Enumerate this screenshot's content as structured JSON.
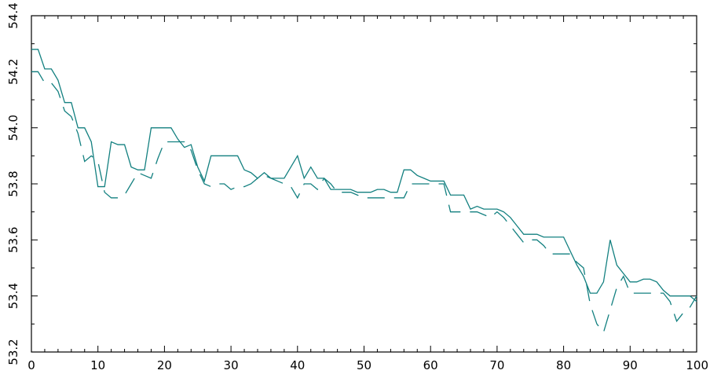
{
  "chart_data": {
    "type": "line",
    "title": "",
    "xlabel": "",
    "ylabel": "",
    "xlim": [
      0,
      100
    ],
    "ylim": [
      53.2,
      54.4
    ],
    "xticks": [
      0,
      10,
      20,
      30,
      40,
      50,
      60,
      70,
      80,
      90,
      100
    ],
    "xtick_labels": [
      "0",
      "10",
      "20",
      "30",
      "40",
      "50",
      "60",
      "70",
      "80",
      "90",
      "100"
    ],
    "yticks": [
      53.2,
      53.4,
      53.6,
      53.8,
      54.0,
      54.2,
      54.4
    ],
    "ytick_labels": [
      "53.2",
      "53.4",
      "53.6",
      "53.8",
      "54.0",
      "54.2",
      "54.4"
    ],
    "grid": false,
    "legend": "none",
    "colors": {
      "series": "#138080",
      "axes": "#000000",
      "background": "#ffffff"
    },
    "series": [
      {
        "style": "solid",
        "x": [
          0,
          1,
          2,
          3,
          4,
          5,
          6,
          7,
          8,
          9,
          10,
          11,
          12,
          13,
          14,
          15,
          16,
          17,
          18,
          19,
          20,
          21,
          22,
          23,
          24,
          25,
          26,
          27,
          28,
          29,
          30,
          31,
          32,
          33,
          34,
          35,
          36,
          37,
          38,
          39,
          40,
          41,
          42,
          43,
          44,
          45,
          46,
          47,
          48,
          49,
          50,
          51,
          52,
          53,
          54,
          55,
          56,
          57,
          58,
          59,
          60,
          61,
          62,
          63,
          64,
          65,
          66,
          67,
          68,
          69,
          70,
          71,
          72,
          73,
          74,
          75,
          76,
          77,
          78,
          79,
          80,
          81,
          82,
          83,
          84,
          85,
          86,
          87,
          88,
          89,
          90,
          91,
          92,
          93,
          94,
          95,
          96,
          97,
          98,
          99,
          100
        ],
        "y": [
          54.28,
          54.28,
          54.21,
          54.21,
          54.17,
          54.09,
          54.09,
          54.0,
          54.0,
          53.95,
          53.79,
          53.79,
          53.95,
          53.94,
          53.94,
          53.86,
          53.85,
          53.85,
          54.0,
          54.0,
          54.0,
          54.0,
          53.96,
          53.93,
          53.94,
          53.86,
          53.81,
          53.9,
          53.9,
          53.9,
          53.9,
          53.9,
          53.85,
          53.84,
          53.82,
          53.84,
          53.82,
          53.82,
          53.82,
          53.86,
          53.9,
          53.82,
          53.86,
          53.82,
          53.82,
          53.78,
          53.78,
          53.78,
          53.78,
          53.77,
          53.77,
          53.77,
          53.78,
          53.78,
          53.77,
          53.77,
          53.85,
          53.85,
          53.83,
          53.82,
          53.81,
          53.81,
          53.81,
          53.76,
          53.76,
          53.76,
          53.71,
          53.72,
          53.71,
          53.71,
          53.71,
          53.7,
          53.68,
          53.65,
          53.62,
          53.62,
          53.62,
          53.61,
          53.61,
          53.61,
          53.61,
          53.56,
          53.51,
          53.47,
          53.41,
          53.41,
          53.45,
          53.6,
          53.51,
          53.48,
          53.45,
          53.45,
          53.46,
          53.46,
          53.45,
          53.42,
          53.4,
          53.4,
          53.4,
          53.4,
          53.38
        ]
      },
      {
        "style": "dashed",
        "x": [
          0,
          1,
          2,
          3,
          4,
          5,
          6,
          7,
          8,
          9,
          10,
          11,
          12,
          13,
          14,
          15,
          16,
          17,
          18,
          19,
          20,
          21,
          22,
          23,
          24,
          25,
          26,
          27,
          28,
          29,
          30,
          31,
          32,
          33,
          34,
          35,
          36,
          37,
          38,
          39,
          40,
          41,
          42,
          43,
          44,
          45,
          46,
          47,
          48,
          49,
          50,
          51,
          52,
          53,
          54,
          55,
          56,
          57,
          58,
          59,
          60,
          61,
          62,
          63,
          64,
          65,
          66,
          67,
          68,
          69,
          70,
          71,
          72,
          73,
          74,
          75,
          76,
          77,
          78,
          79,
          80,
          81,
          82,
          83,
          84,
          85,
          86,
          87,
          88,
          89,
          90,
          91,
          92,
          93,
          94,
          95,
          96,
          97,
          98,
          99,
          100
        ],
        "y": [
          54.2,
          54.2,
          54.16,
          54.16,
          54.13,
          54.06,
          54.04,
          53.98,
          53.88,
          53.9,
          53.88,
          53.77,
          53.75,
          53.75,
          53.76,
          53.8,
          53.84,
          53.83,
          53.82,
          53.89,
          53.95,
          53.95,
          53.95,
          53.95,
          53.92,
          53.85,
          53.8,
          53.79,
          53.8,
          53.8,
          53.78,
          53.79,
          53.79,
          53.8,
          53.82,
          53.83,
          53.82,
          53.81,
          53.8,
          53.79,
          53.75,
          53.8,
          53.8,
          53.78,
          53.82,
          53.8,
          53.77,
          53.77,
          53.77,
          53.76,
          53.75,
          53.75,
          53.75,
          53.75,
          53.75,
          53.75,
          53.75,
          53.8,
          53.8,
          53.8,
          53.8,
          53.8,
          53.8,
          53.7,
          53.7,
          53.7,
          53.7,
          53.7,
          53.69,
          53.68,
          53.7,
          53.68,
          53.65,
          53.62,
          53.59,
          53.6,
          53.6,
          53.58,
          53.55,
          53.55,
          53.55,
          53.55,
          53.52,
          53.5,
          53.37,
          53.3,
          53.27,
          53.35,
          53.43,
          53.47,
          53.41,
          53.41,
          53.41,
          53.41,
          53.41,
          53.41,
          53.38,
          53.31,
          53.34,
          53.36,
          53.4
        ]
      }
    ]
  }
}
